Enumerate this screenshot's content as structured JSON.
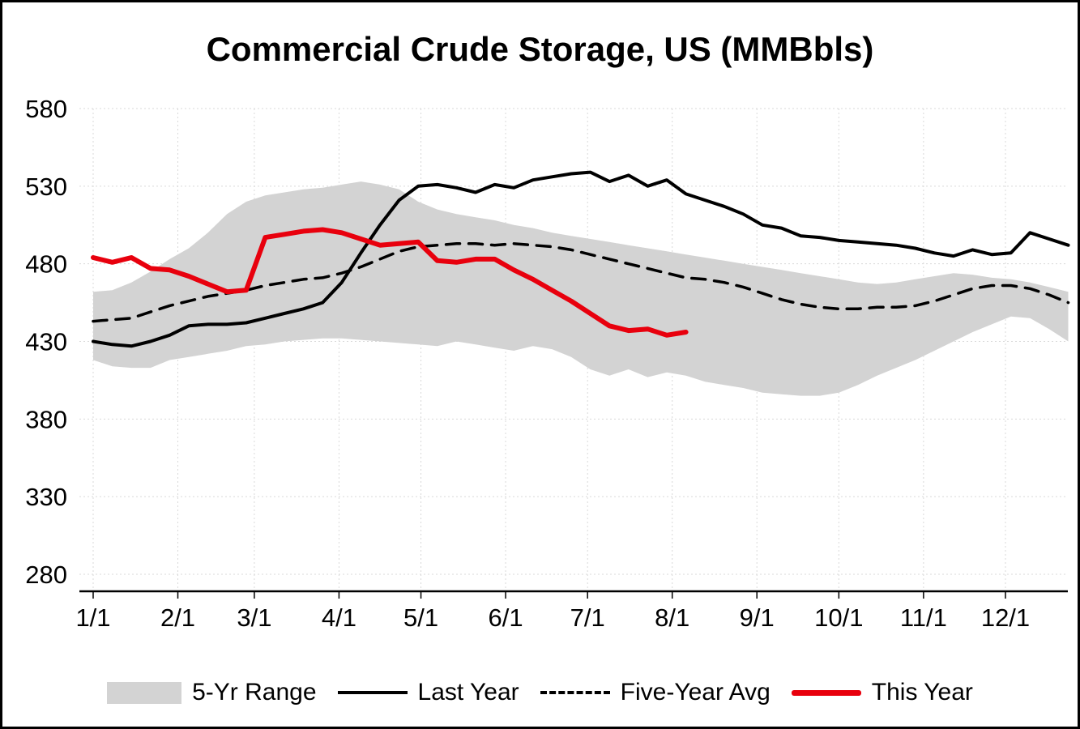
{
  "chart_data": {
    "type": "line",
    "title": "Commercial Crude Storage, US (MMBbls)",
    "ylim": [
      280,
      580
    ],
    "y_ticks": [
      580,
      530,
      480,
      430,
      380,
      330,
      280
    ],
    "x_tick_labels": [
      "1/1",
      "2/1",
      "3/1",
      "4/1",
      "5/1",
      "6/1",
      "7/1",
      "8/1",
      "9/1",
      "10/1",
      "11/1",
      "12/1"
    ],
    "x_tick_days": [
      0,
      31,
      59,
      90,
      120,
      151,
      181,
      212,
      243,
      273,
      304,
      334
    ],
    "week_interval_days": 7,
    "grid": true,
    "legend_position": "bottom",
    "colors": {
      "band": "#d3d3d3",
      "black": "#000000",
      "red": "#e8000d",
      "gridline": "#d9d9d9"
    },
    "band": {
      "name": "5-Yr Range",
      "color": "#d3d3d3",
      "lower": [
        418,
        414,
        413,
        413,
        418,
        420,
        422,
        424,
        427,
        428,
        430,
        431,
        432,
        432,
        431,
        430,
        429,
        428,
        427,
        430,
        428,
        426,
        424,
        427,
        425,
        420,
        412,
        408,
        412,
        407,
        410,
        408,
        404,
        402,
        400,
        397,
        396,
        395,
        395,
        397,
        402,
        408,
        413,
        418,
        424,
        430,
        436,
        441,
        446,
        445,
        438,
        430
      ],
      "upper": [
        462,
        463,
        468,
        475,
        483,
        490,
        500,
        512,
        520,
        524,
        526,
        528,
        529,
        531,
        533,
        531,
        528,
        520,
        515,
        512,
        510,
        508,
        505,
        503,
        500,
        498,
        496,
        494,
        492,
        490,
        488,
        486,
        484,
        482,
        480,
        478,
        476,
        474,
        472,
        470,
        468,
        467,
        468,
        470,
        472,
        474,
        473,
        471,
        470,
        468,
        465,
        462
      ]
    },
    "series": [
      {
        "name": "Five-Year Avg",
        "color": "#000000",
        "style": "dashed",
        "width": 3.5,
        "values": [
          443,
          444,
          445,
          449,
          453,
          456,
          459,
          461,
          463,
          466,
          468,
          470,
          471,
          474,
          478,
          483,
          488,
          491,
          492,
          493,
          493,
          492,
          493,
          492,
          491,
          489,
          486,
          483,
          480,
          477,
          474,
          471,
          470,
          468,
          465,
          461,
          457,
          454,
          452,
          451,
          451,
          452,
          452,
          453,
          456,
          460,
          464,
          466,
          466,
          464,
          460,
          455
        ]
      },
      {
        "name": "Last Year",
        "color": "#000000",
        "style": "solid",
        "width": 4,
        "values": [
          430,
          428,
          427,
          430,
          434,
          440,
          441,
          441,
          442,
          445,
          448,
          451,
          455,
          468,
          487,
          505,
          521,
          530,
          531,
          529,
          526,
          531,
          529,
          534,
          536,
          538,
          539,
          533,
          537,
          530,
          534,
          525,
          521,
          517,
          512,
          505,
          503,
          498,
          497,
          495,
          494,
          493,
          492,
          490,
          487,
          485,
          489,
          486,
          487,
          500,
          496,
          492
        ]
      },
      {
        "name": "This Year",
        "color": "#e8000d",
        "style": "solid",
        "width": 6,
        "values": [
          484,
          481,
          484,
          477,
          476,
          472,
          467,
          462,
          463,
          497,
          499,
          501,
          502,
          500,
          496,
          492,
          493,
          494,
          482,
          481,
          483,
          483,
          476,
          470,
          463,
          456,
          448,
          440,
          437,
          438,
          434,
          436
        ]
      }
    ],
    "legend": [
      {
        "label": "5-Yr Range",
        "swatch": "band"
      },
      {
        "label": "Last Year",
        "swatch": "line-solid-black"
      },
      {
        "label": "Five-Year Avg",
        "swatch": "line-dashed-black"
      },
      {
        "label": "This Year",
        "swatch": "line-solid-red"
      }
    ]
  }
}
